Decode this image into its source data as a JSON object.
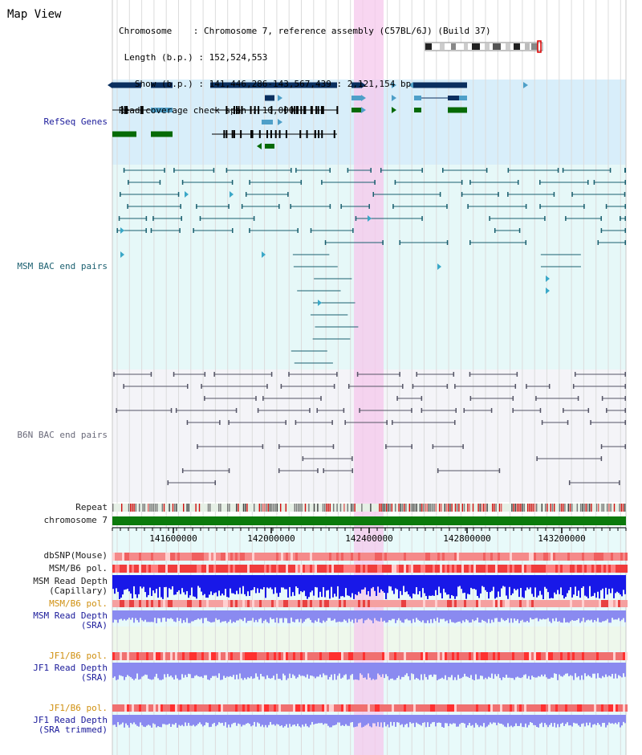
{
  "title": "Map View",
  "info": {
    "chromosome": "Chromosome    : Chromosome 7, reference assembly (C57BL/6J) (Build 37)",
    "length": " Length (b.p.) : 152,524,553",
    "show": "   Show (b.p.) : 141,446,286-143,567,439 : 2,121,154 bp",
    "coverage": "Read coverage check span : 10,000"
  },
  "tracks": {
    "refseq": "RefSeq Genes",
    "msm_bac": "MSM BAC end pairs",
    "b6n_bac": "B6N BAC end pairs",
    "repeat": "Repeat",
    "chromosome": "chromosome 7",
    "dbsnp": "dbSNP(Mouse)",
    "msm_b6_pol_1": "MSM/B6 pol.",
    "msm_depth_cap_1": "MSM Read Depth",
    "msm_depth_cap_2": "(Capillary)",
    "msm_b6_pol_2": "MSM/B6 pol.",
    "msm_depth_sra_1": "MSM Read Depth",
    "msm_depth_sra_2": "(SRA)",
    "jf1_b6_pol_1": "JF1/B6 pol.",
    "jf1_depth_sra_1": "JF1 Read Depth",
    "jf1_depth_sra_2": "(SRA)",
    "jf1_b6_pol_2": "JF1/B6 pol.",
    "jf1_depth_trim_1": "JF1 Read Depth",
    "jf1_depth_trim_2": "(SRA trimmed)"
  },
  "axis": {
    "ticks": [
      "141600000",
      "142000000",
      "142400000",
      "142800000",
      "143200000"
    ]
  },
  "colors": {
    "refseq_bg": "#d8eefa",
    "msm_bg": "#e6f8f8",
    "b6n_bg": "#f4f4f8",
    "highlight": "#f5c8ec",
    "gene_dark": "#0a2f5f",
    "gene_light": "#4e9fc8",
    "gene_green": "#066a06",
    "chrom_bar": "#0c7a0c",
    "snp": "#f08080",
    "depth_blue": "#1818e8",
    "depth_light": "#8a8af0"
  }
}
